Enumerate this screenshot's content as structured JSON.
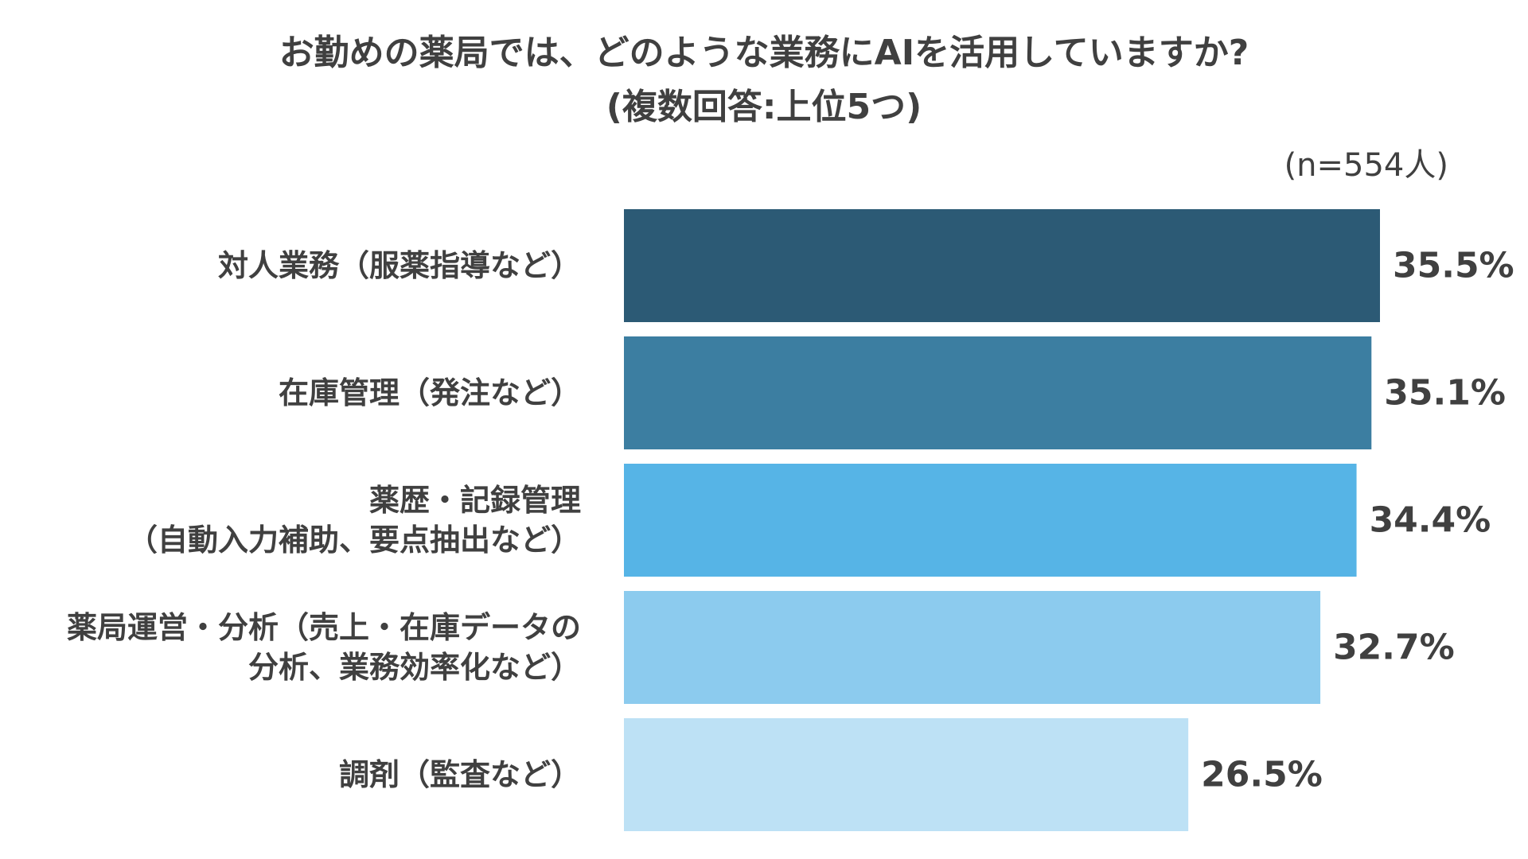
{
  "title": {
    "line1": "お勤めの薬局では、どのような業務にAIを活用していますか?",
    "line2": "(複数回答:上位5つ)"
  },
  "sample_note": "(n=554人)",
  "colors": [
    "#2C5A75",
    "#3C7EA1",
    "#56B4E6",
    "#8CCBEE",
    "#BDE1F5"
  ],
  "chart_data": {
    "type": "bar",
    "orientation": "horizontal",
    "title": "お勤めの薬局では、どのような業務にAIを活用していますか?(複数回答:上位5つ)",
    "categories": [
      [
        "対人業務（服薬指導など）"
      ],
      [
        "在庫管理（発注など）"
      ],
      [
        "薬歴・記録管理",
        "（自動入力補助、要点抽出など）"
      ],
      [
        "薬局運営・分析（売上・在庫データの",
        "分析、業務効率化など）"
      ],
      [
        "調剤（監査など）"
      ]
    ],
    "values": [
      35.5,
      35.1,
      34.4,
      32.7,
      26.5
    ],
    "value_labels": [
      "35.5%",
      "35.1%",
      "34.4%",
      "32.7%",
      "26.5%"
    ],
    "unit": "%",
    "xlim": [
      0,
      35.5
    ],
    "grid": false,
    "legend": "none"
  }
}
